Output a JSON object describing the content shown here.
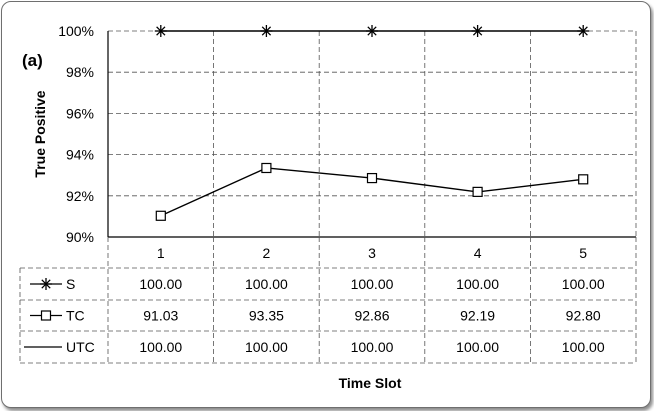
{
  "chart_data": {
    "type": "line",
    "panel_label": "(a)",
    "xlabel": "Time Slot",
    "ylabel": "True Positive",
    "categories": [
      "1",
      "2",
      "3",
      "4",
      "5"
    ],
    "ylim": [
      90,
      100
    ],
    "yticks": [
      "90%",
      "92%",
      "94%",
      "96%",
      "98%",
      "100%"
    ],
    "grid": true,
    "data_table": true,
    "series": [
      {
        "name": "S",
        "marker": "star",
        "line": false,
        "values": [
          100.0,
          100.0,
          100.0,
          100.0,
          100.0
        ],
        "labels": [
          "100.00",
          "100.00",
          "100.00",
          "100.00",
          "100.00"
        ]
      },
      {
        "name": "TC",
        "marker": "square",
        "line": true,
        "values": [
          91.03,
          93.35,
          92.86,
          92.19,
          92.8
        ],
        "labels": [
          "91.03",
          "93.35",
          "92.86",
          "92.19",
          "92.80"
        ]
      },
      {
        "name": "UTC",
        "marker": "none",
        "line": true,
        "values": [
          100.0,
          100.0,
          100.0,
          100.0,
          100.0
        ],
        "labels": [
          "100.00",
          "100.00",
          "100.00",
          "100.00",
          "100.00"
        ]
      }
    ]
  }
}
